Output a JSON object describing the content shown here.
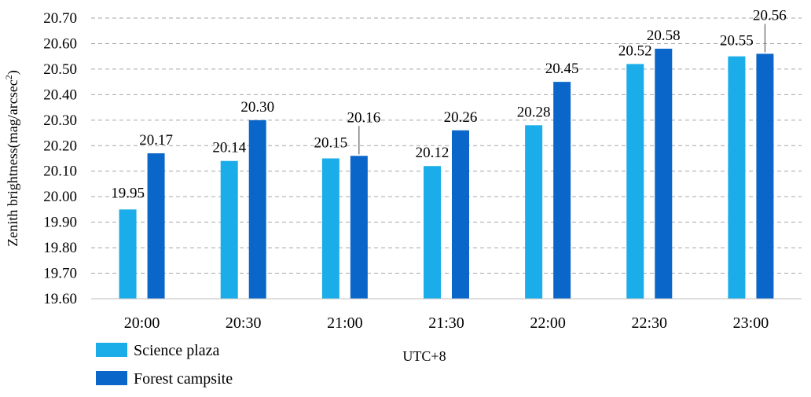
{
  "chart_data": {
    "type": "bar",
    "categories": [
      "20:00",
      "20:30",
      "21:00",
      "21:30",
      "22:00",
      "22:30",
      "23:00"
    ],
    "series": [
      {
        "name": "Science plaza",
        "color": "#1AADE9",
        "values": [
          19.95,
          20.14,
          20.15,
          20.12,
          20.28,
          20.52,
          20.55
        ]
      },
      {
        "name": "Forest campsite",
        "color": "#0B66C9",
        "values": [
          20.17,
          20.3,
          20.16,
          20.26,
          20.45,
          20.58,
          20.56
        ]
      }
    ],
    "data_labels": [
      [
        "19.95",
        "20.14",
        "20.15",
        "20.12",
        "20.28",
        "20.52",
        "20.55"
      ],
      [
        "20.17",
        "20.30",
        "20.16",
        "20.26",
        "20.45",
        "20.58",
        "20.56"
      ]
    ],
    "xlabel": "UTC+8",
    "ylabel": "Zenith brightness(mag/arcsec",
    "ylabel_superscript": "2",
    "ylabel_close": ")",
    "ylim": [
      19.6,
      20.7
    ],
    "yticks": [
      "19.60",
      "19.70",
      "19.80",
      "19.90",
      "20.00",
      "20.10",
      "20.20",
      "20.30",
      "20.40",
      "20.50",
      "20.60",
      "20.70"
    ],
    "grid": "horizontal dashed",
    "legend_position": "bottom-left"
  }
}
